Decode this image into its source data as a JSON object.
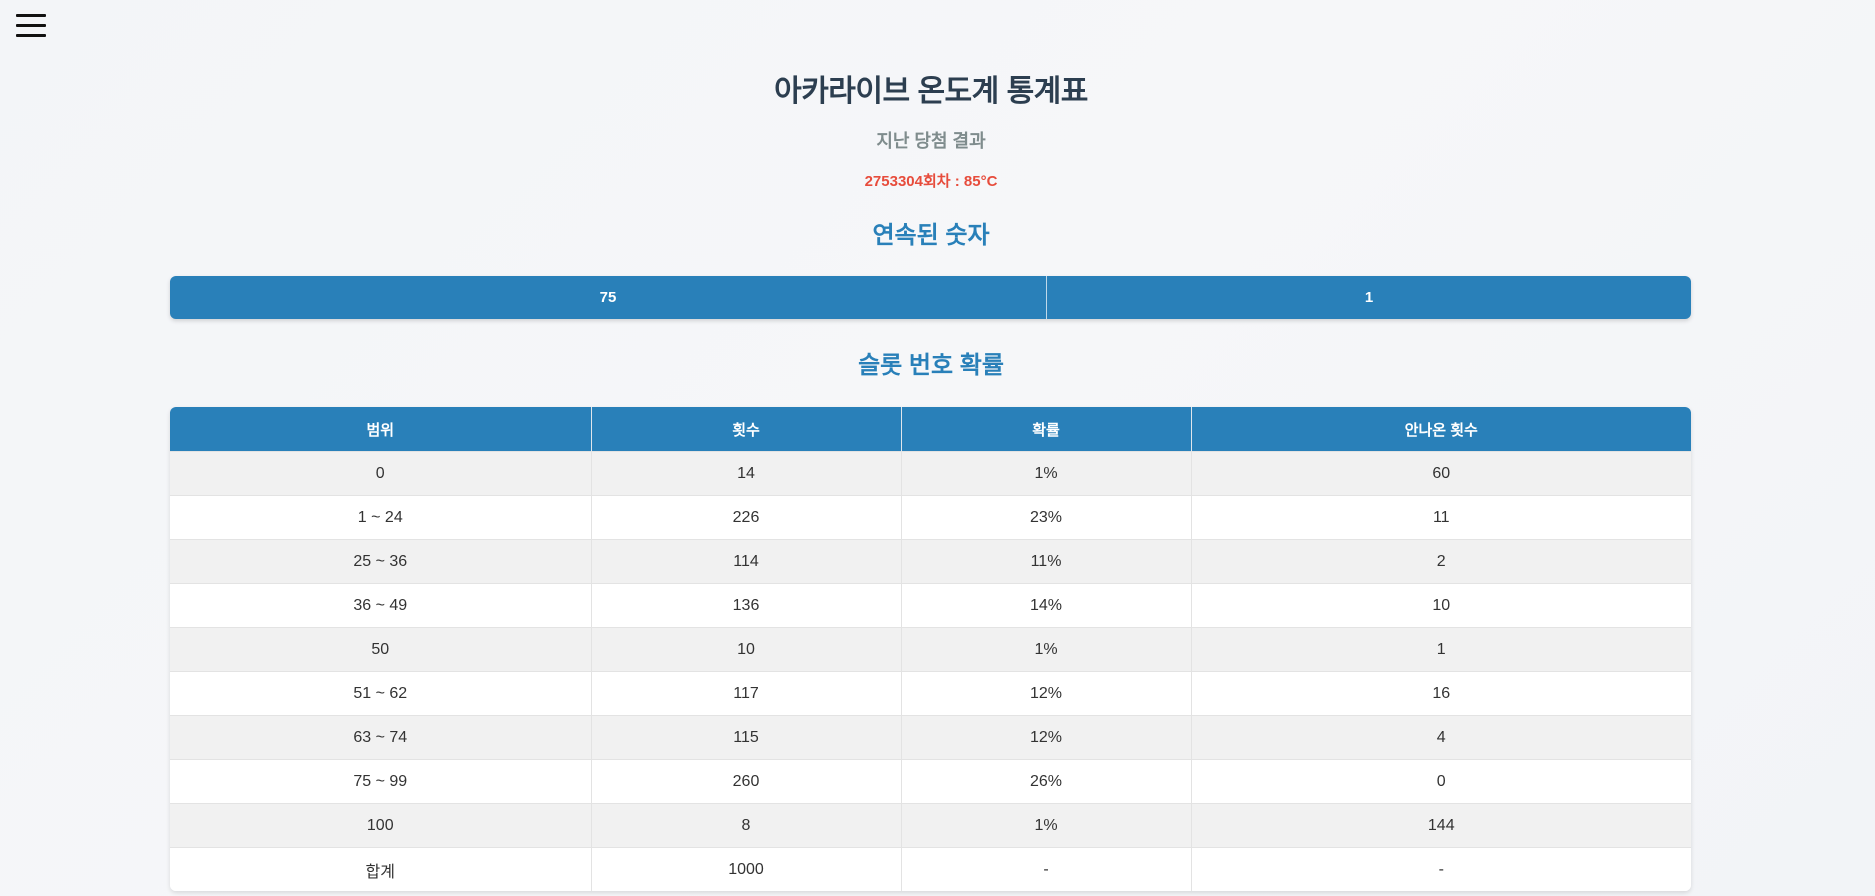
{
  "header": {
    "menu_icon": "hamburger-menu-icon",
    "title": "아카라이브 온도계 통계표",
    "subtitle": "지난 당첨 결과",
    "last_result": "2753304회차 : 85°C"
  },
  "streak": {
    "section_title": "연속된 숫자",
    "number": "75",
    "count": "1"
  },
  "probability": {
    "section_title": "슬롯 번호 확률",
    "columns": [
      "범위",
      "횟수",
      "확률",
      "안나온 횟수"
    ],
    "rows": [
      [
        "0",
        "14",
        "1%",
        "60"
      ],
      [
        "1 ~ 24",
        "226",
        "23%",
        "11"
      ],
      [
        "25 ~ 36",
        "114",
        "11%",
        "2"
      ],
      [
        "36 ~ 49",
        "136",
        "14%",
        "10"
      ],
      [
        "50",
        "10",
        "1%",
        "1"
      ],
      [
        "51 ~ 62",
        "117",
        "12%",
        "16"
      ],
      [
        "63 ~ 74",
        "115",
        "12%",
        "4"
      ],
      [
        "75 ~ 99",
        "260",
        "26%",
        "0"
      ],
      [
        "100",
        "8",
        "1%",
        "144"
      ],
      [
        "합계",
        "1000",
        "-",
        "-"
      ]
    ]
  },
  "colors": {
    "accent": "#2980b9",
    "title": "#2c3e50",
    "subtitle": "#7f8c8d",
    "highlight": "#e74c3c"
  }
}
